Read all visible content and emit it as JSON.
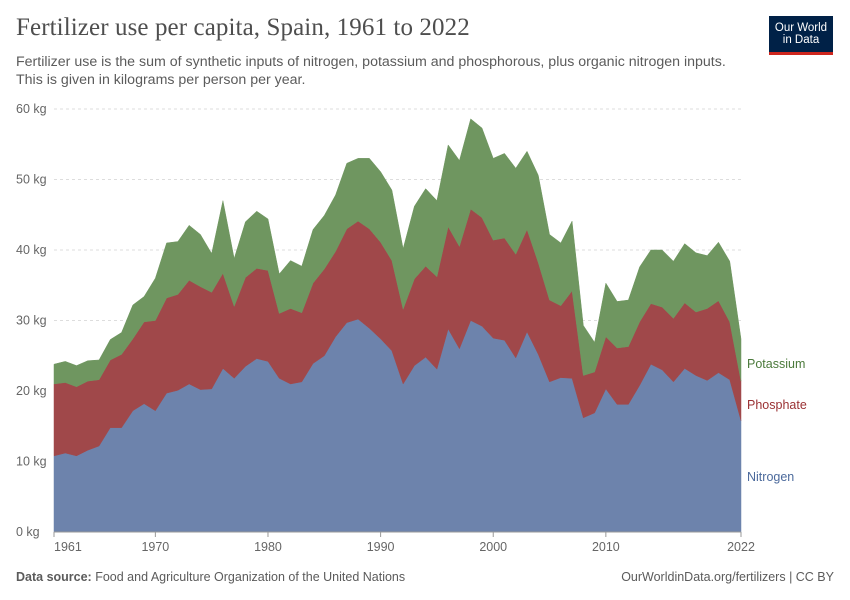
{
  "title": "Fertilizer use per capita, Spain, 1961 to 2022",
  "subtitle": "Fertilizer use is the sum of synthetic inputs of nitrogen, potassium and phosphorous, plus organic nitrogen inputs. This is given in kilograms per person per year.",
  "logo": {
    "line1": "Our World",
    "line2": "in Data"
  },
  "footer": {
    "source_label": "Data source:",
    "source_text": "Food and Agriculture Organization of the United Nations",
    "link": "OurWorldinData.org/fertilizers | CC BY"
  },
  "chart_data": {
    "type": "area",
    "stacked": true,
    "title": "Fertilizer use per capita, Spain, 1961 to 2022",
    "unit": "kg",
    "xlabel": "",
    "ylabel": "",
    "ylim": [
      0,
      60
    ],
    "xlim": [
      1961,
      2022
    ],
    "y_ticks": [
      0,
      10,
      20,
      30,
      40,
      50,
      60
    ],
    "y_tick_labels": [
      "0 kg",
      "10 kg",
      "20 kg",
      "30 kg",
      "40 kg",
      "50 kg",
      "60 kg"
    ],
    "x_ticks": [
      1961,
      1970,
      1980,
      1990,
      2000,
      2010,
      2022
    ],
    "x_tick_labels": [
      "1961",
      "1970",
      "1980",
      "1990",
      "2000",
      "2010",
      "2022"
    ],
    "grid": "horizontal dashed",
    "x": [
      1961,
      1962,
      1963,
      1964,
      1965,
      1966,
      1967,
      1968,
      1969,
      1970,
      1971,
      1972,
      1973,
      1974,
      1975,
      1976,
      1977,
      1978,
      1979,
      1980,
      1981,
      1982,
      1983,
      1984,
      1985,
      1986,
      1987,
      1988,
      1989,
      1990,
      1991,
      1992,
      1993,
      1994,
      1995,
      1996,
      1997,
      1998,
      1999,
      2000,
      2001,
      2002,
      2003,
      2004,
      2005,
      2006,
      2007,
      2008,
      2009,
      2010,
      2011,
      2012,
      2013,
      2014,
      2015,
      2016,
      2017,
      2018,
      2019,
      2020,
      2021,
      2022
    ],
    "series": [
      {
        "name": "Nitrogen",
        "color": "#6d83ac",
        "values": [
          10.8,
          11.2,
          10.8,
          11.6,
          12.2,
          14.8,
          14.8,
          17.2,
          18.2,
          17.2,
          19.7,
          20.1,
          21.0,
          20.2,
          20.3,
          23.2,
          21.8,
          23.5,
          24.6,
          24.2,
          21.8,
          21.0,
          21.3,
          23.9,
          25.0,
          27.7,
          29.7,
          30.2,
          28.9,
          27.4,
          25.7,
          21.0,
          23.6,
          24.8,
          23.1,
          28.8,
          26.0,
          30.0,
          29.2,
          27.5,
          27.2,
          24.7,
          28.4,
          25.2,
          21.3,
          21.9,
          21.8,
          16.2,
          16.9,
          20.3,
          18.1,
          18.1,
          20.8,
          23.8,
          23.0,
          21.3,
          23.2,
          22.2,
          21.5,
          22.6,
          21.6,
          15.8
        ]
      },
      {
        "name": "Phosphate",
        "color": "#a0484a",
        "values": [
          10.2,
          10.0,
          9.8,
          9.8,
          9.4,
          9.6,
          10.4,
          10.2,
          11.6,
          12.8,
          13.5,
          13.6,
          14.7,
          14.6,
          13.7,
          13.5,
          10.2,
          12.6,
          12.8,
          12.9,
          9.2,
          10.7,
          9.8,
          11.4,
          12.3,
          12.1,
          13.3,
          13.9,
          14.1,
          13.7,
          12.8,
          10.6,
          12.3,
          12.9,
          13.1,
          14.5,
          14.5,
          15.8,
          15.4,
          13.9,
          14.5,
          14.7,
          14.5,
          13.0,
          11.6,
          10.2,
          12.4,
          6.0,
          5.8,
          7.4,
          8.0,
          8.2,
          9.0,
          8.6,
          8.9,
          9.0,
          9.3,
          9.0,
          10.2,
          10.2,
          8.2,
          5.6
        ]
      },
      {
        "name": "Potassium",
        "color": "#6f9660",
        "values": [
          2.8,
          3.0,
          3.0,
          2.9,
          2.8,
          2.9,
          3.1,
          4.8,
          3.6,
          6.0,
          7.8,
          7.5,
          7.8,
          7.4,
          5.5,
          10.3,
          6.8,
          7.9,
          8.1,
          7.3,
          5.6,
          6.8,
          6.6,
          7.6,
          7.6,
          8.0,
          9.3,
          8.9,
          10.0,
          10.0,
          10.0,
          8.6,
          10.3,
          11.0,
          10.8,
          11.6,
          12.2,
          12.8,
          12.7,
          11.6,
          12.0,
          12.2,
          11.1,
          12.4,
          9.3,
          8.9,
          9.9,
          7.1,
          4.2,
          7.6,
          6.6,
          6.6,
          7.8,
          7.6,
          8.1,
          8.1,
          8.4,
          8.4,
          7.5,
          8.3,
          8.6,
          6.0
        ]
      }
    ]
  }
}
